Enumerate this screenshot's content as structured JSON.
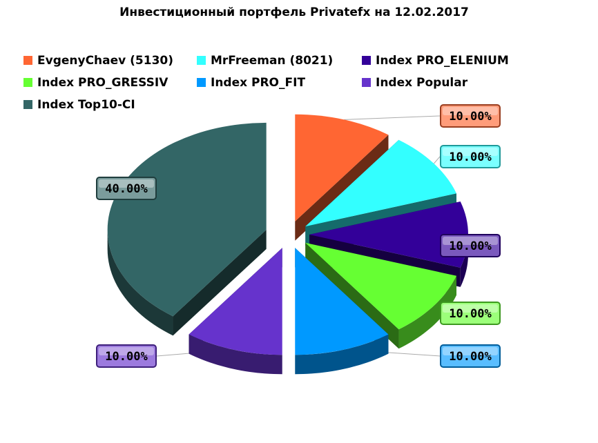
{
  "chart_data": {
    "type": "pie",
    "style": "3d-exploded",
    "title": "Инвестиционный портфель Privatefx на 12.02.2017",
    "legend_position": "top",
    "slices": [
      {
        "label": "EvgenyChaev (5130)",
        "value": 10.0,
        "value_label": "10.00%",
        "color": "#ff6633"
      },
      {
        "label": "MrFreeman (8021)",
        "value": 10.0,
        "value_label": "10.00%",
        "color": "#33ffff"
      },
      {
        "label": "Index PRO_ELENIUM",
        "value": 10.0,
        "value_label": "10.00%",
        "color": "#330099"
      },
      {
        "label": "Index PRO_GRESSIV",
        "value": 10.0,
        "value_label": "10.00%",
        "color": "#66ff33"
      },
      {
        "label": "Index PRO_FIT",
        "value": 10.0,
        "value_label": "10.00%",
        "color": "#0099ff"
      },
      {
        "label": "Index Popular",
        "value": 10.0,
        "value_label": "10.00%",
        "color": "#6633cc"
      },
      {
        "label": "Index Top10-CI",
        "value": 40.0,
        "value_label": "40.00%",
        "color": "#336666"
      }
    ]
  }
}
